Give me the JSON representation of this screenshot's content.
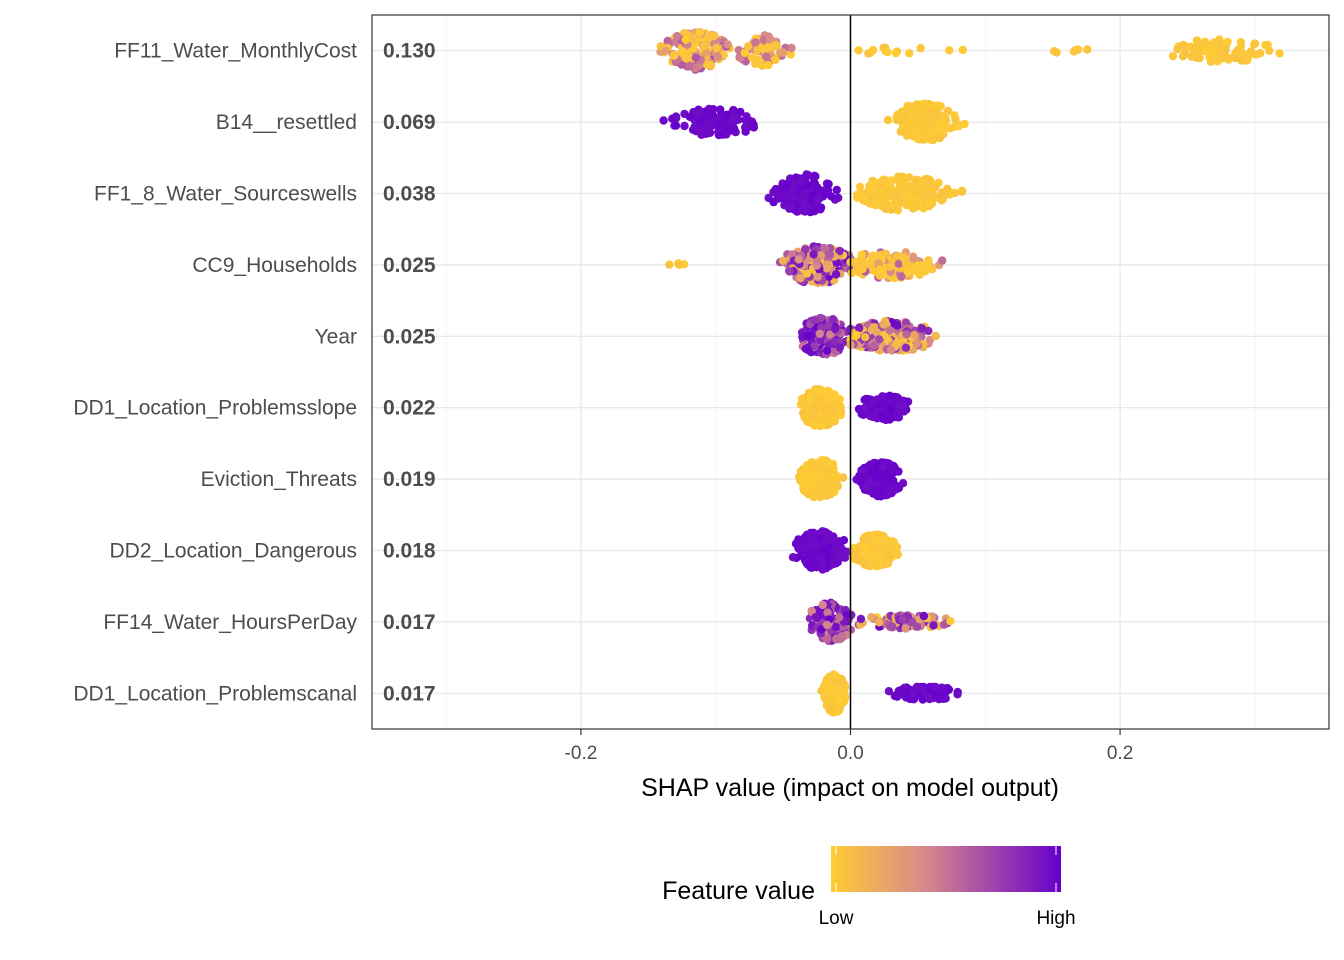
{
  "chart_data": {
    "type": "scatter",
    "subtype": "shap-beeswarm",
    "xlabel": "SHAP value (impact on model output)",
    "xlim": [
      -0.355,
      0.355
    ],
    "x_ticks": [
      -0.2,
      0.0,
      0.2
    ],
    "x_tick_labels": [
      "-0.2",
      "0.0",
      "0.2"
    ],
    "grid": true,
    "legend": {
      "title": "Feature value",
      "low_label": "Low",
      "high_label": "High",
      "low_color": "#FFCC33",
      "mid_color": "#D98A8A",
      "high_color": "#6600CC",
      "position": "bottom"
    },
    "features": [
      {
        "name": "FF11_Water_MonthlyCost",
        "mean_abs_shap": "0.130",
        "clusters": [
          {
            "min": -0.145,
            "max": -0.085,
            "center": -0.115,
            "n": 160,
            "spread": 1.0,
            "color": "mix_low"
          },
          {
            "min": -0.09,
            "max": -0.04,
            "center": -0.065,
            "n": 70,
            "spread": 0.8,
            "color": "mix_low"
          },
          {
            "min": -0.04,
            "max": 0.1,
            "center": 0.03,
            "n": 14,
            "spread": 0.15,
            "color": "low"
          },
          {
            "min": 0.14,
            "max": 0.2,
            "center": 0.17,
            "n": 6,
            "spread": 0.15,
            "color": "low"
          },
          {
            "min": 0.22,
            "max": 0.33,
            "center": 0.275,
            "n": 80,
            "spread": 0.6,
            "color": "low"
          }
        ]
      },
      {
        "name": "B14__resettled",
        "mean_abs_shap": "0.069",
        "clusters": [
          {
            "min": -0.14,
            "max": -0.05,
            "center": -0.1,
            "n": 110,
            "spread": 0.7,
            "color": "high"
          },
          {
            "min": 0.02,
            "max": 0.085,
            "center": 0.055,
            "n": 180,
            "spread": 1.0,
            "color": "low"
          }
        ]
      },
      {
        "name": "FF1_8_Water_Sourceswells",
        "mean_abs_shap": "0.038",
        "clusters": [
          {
            "min": -0.068,
            "max": -0.008,
            "center": -0.035,
            "n": 160,
            "spread": 1.0,
            "color": "high"
          },
          {
            "min": 0.005,
            "max": 0.1,
            "center": 0.04,
            "n": 200,
            "spread": 0.9,
            "color": "low"
          }
        ]
      },
      {
        "name": "CC9_Households",
        "mean_abs_shap": "0.025",
        "clusters": [
          {
            "min": -0.142,
            "max": -0.115,
            "center": -0.13,
            "n": 4,
            "spread": 0.1,
            "color": "low"
          },
          {
            "min": -0.07,
            "max": 0.0,
            "center": -0.025,
            "n": 170,
            "spread": 1.0,
            "color": "mixed"
          },
          {
            "min": 0.0,
            "max": 0.095,
            "center": 0.03,
            "n": 130,
            "spread": 0.7,
            "color": "low_mix"
          }
        ]
      },
      {
        "name": "Year",
        "mean_abs_shap": "0.025",
        "clusters": [
          {
            "min": -0.045,
            "max": 0.0,
            "center": -0.02,
            "n": 170,
            "spread": 1.0,
            "color": "high_mix"
          },
          {
            "min": 0.0,
            "max": 0.092,
            "center": 0.03,
            "n": 160,
            "spread": 0.8,
            "color": "mixed"
          }
        ]
      },
      {
        "name": "DD1_Location_Problemsslope",
        "mean_abs_shap": "0.022",
        "clusters": [
          {
            "min": -0.043,
            "max": -0.003,
            "center": -0.022,
            "n": 190,
            "spread": 1.0,
            "color": "low"
          },
          {
            "min": 0.003,
            "max": 0.055,
            "center": 0.025,
            "n": 120,
            "spread": 0.65,
            "color": "high"
          }
        ]
      },
      {
        "name": "Eviction_Threats",
        "mean_abs_shap": "0.019",
        "clusters": [
          {
            "min": -0.043,
            "max": -0.003,
            "center": -0.022,
            "n": 210,
            "spread": 1.0,
            "color": "low"
          },
          {
            "min": 0.003,
            "max": 0.044,
            "center": 0.022,
            "n": 160,
            "spread": 0.9,
            "color": "high"
          }
        ]
      },
      {
        "name": "DD2_Location_Dangerous",
        "mean_abs_shap": "0.018",
        "clusters": [
          {
            "min": -0.055,
            "max": -0.002,
            "center": -0.022,
            "n": 200,
            "spread": 1.0,
            "color": "high"
          },
          {
            "min": 0.002,
            "max": 0.048,
            "center": 0.018,
            "n": 150,
            "spread": 0.85,
            "color": "low"
          }
        ]
      },
      {
        "name": "FF14_Water_HoursPerDay",
        "mean_abs_shap": "0.017",
        "clusters": [
          {
            "min": -0.038,
            "max": 0.005,
            "center": -0.015,
            "n": 160,
            "spread": 1.0,
            "color": "high_mix"
          },
          {
            "min": 0.005,
            "max": 0.095,
            "center": 0.04,
            "n": 100,
            "spread": 0.35,
            "color": "mixed"
          }
        ]
      },
      {
        "name": "DD1_Location_Problemscanal",
        "mean_abs_shap": "0.017",
        "clusters": [
          {
            "min": -0.022,
            "max": -0.001,
            "center": -0.012,
            "n": 190,
            "spread": 1.0,
            "color": "low"
          },
          {
            "min": 0.023,
            "max": 0.093,
            "center": 0.055,
            "n": 100,
            "spread": 0.35,
            "color": "high"
          }
        ]
      }
    ]
  }
}
